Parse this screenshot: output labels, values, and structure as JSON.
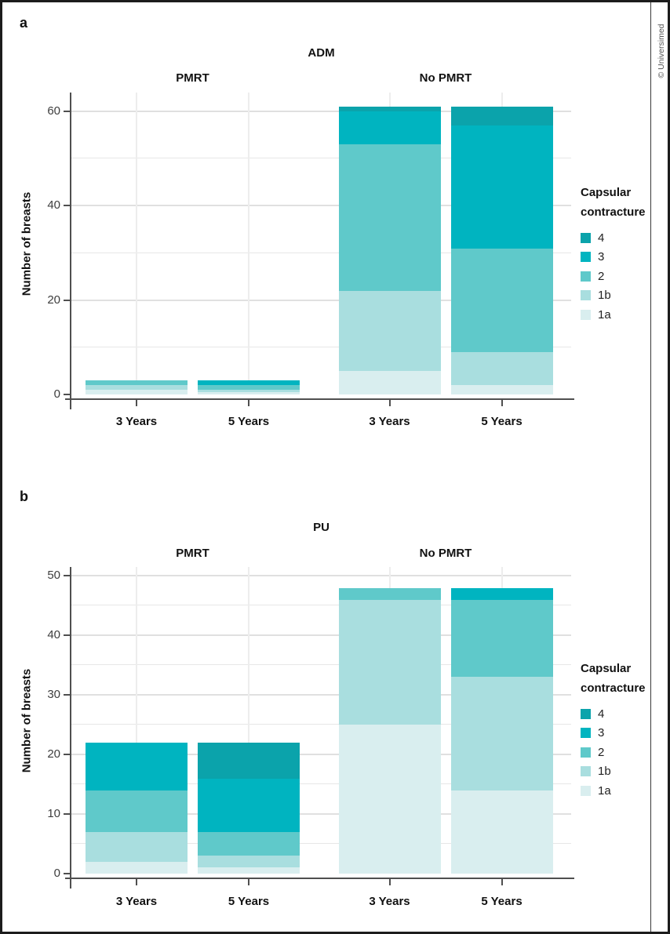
{
  "figure": {
    "copyright": "© Universimed",
    "background": "#ffffff"
  },
  "palette": {
    "grade4": "#0ba3ab",
    "grade3": "#00b4c0",
    "grade2": "#5fc9ca",
    "grade1b": "#a9dedf",
    "grade1a": "#d9eeef",
    "axis": "#4f4f4f",
    "gridline": "#e7e7e7"
  },
  "chart_data": [
    {
      "type": "bar",
      "stacked": true,
      "panel_label": "a",
      "title": "ADM",
      "facets": [
        "PMRT",
        "No PMRT"
      ],
      "categories": [
        "3 Years",
        "5 Years",
        "3 Years",
        "5 Years"
      ],
      "category_facets": [
        "PMRT",
        "PMRT",
        "No PMRT",
        "No PMRT"
      ],
      "ylabel": "Number of breasts",
      "xlabel": "",
      "ylim": [
        0,
        64
      ],
      "yticks": [
        0,
        20,
        40,
        60
      ],
      "minor_step": 10,
      "grid": true,
      "legend_title": "Capsular contracture",
      "legend_position": "right",
      "legend_order": [
        "4",
        "3",
        "2",
        "1b",
        "1a"
      ],
      "series": [
        {
          "name": "1a",
          "color": "#d9eeef",
          "values": [
            1,
            0.5,
            5,
            2
          ]
        },
        {
          "name": "1b",
          "color": "#a9dedf",
          "values": [
            1,
            0.5,
            17,
            7
          ]
        },
        {
          "name": "2",
          "color": "#5fc9ca",
          "values": [
            1,
            1,
            31,
            22
          ]
        },
        {
          "name": "3",
          "color": "#00b4c0",
          "values": [
            0,
            1,
            7,
            26
          ]
        },
        {
          "name": "4",
          "color": "#0ba3ab",
          "values": [
            0,
            0,
            1,
            4
          ]
        }
      ],
      "totals": [
        3,
        3,
        61,
        61
      ]
    },
    {
      "type": "bar",
      "stacked": true,
      "panel_label": "b",
      "title": "PU",
      "facets": [
        "PMRT",
        "No PMRT"
      ],
      "categories": [
        "3 Years",
        "5 Years",
        "3 Years",
        "5 Years"
      ],
      "category_facets": [
        "PMRT",
        "PMRT",
        "No PMRT",
        "No PMRT"
      ],
      "ylabel": "Number of breasts",
      "xlabel": "",
      "ylim": [
        0,
        51.5
      ],
      "yticks": [
        0,
        10,
        20,
        30,
        40,
        50
      ],
      "minor_step": 5,
      "grid": true,
      "legend_title": "Capsular contracture",
      "legend_position": "right",
      "legend_order": [
        "4",
        "3",
        "2",
        "1b",
        "1a"
      ],
      "series": [
        {
          "name": "1a",
          "color": "#d9eeef",
          "values": [
            2,
            1,
            25,
            14
          ]
        },
        {
          "name": "1b",
          "color": "#a9dedf",
          "values": [
            5,
            2,
            21,
            19
          ]
        },
        {
          "name": "2",
          "color": "#5fc9ca",
          "values": [
            7,
            4,
            2,
            13
          ]
        },
        {
          "name": "3",
          "color": "#00b4c0",
          "values": [
            8,
            9,
            0,
            2
          ]
        },
        {
          "name": "4",
          "color": "#0ba3ab",
          "values": [
            0,
            6,
            0,
            0
          ]
        }
      ],
      "totals": [
        22,
        22,
        48,
        48
      ]
    }
  ]
}
